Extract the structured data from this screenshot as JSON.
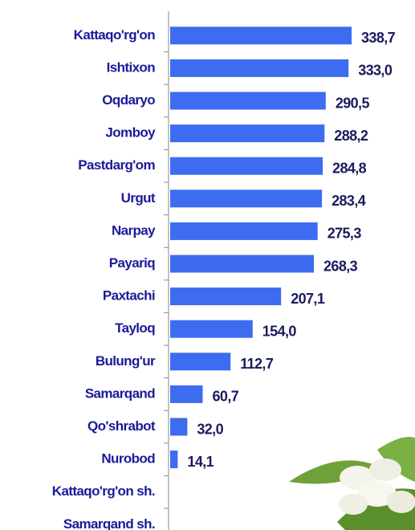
{
  "chart_data": {
    "type": "bar",
    "orientation": "horizontal",
    "categories": [
      "Kattaqo'rg'on",
      "Ishtixon",
      "Oqdaryo",
      "Jomboy",
      "Pastdarg'om",
      "Urgut",
      "Narpay",
      "Payariq",
      "Paxtachi",
      "Tayloq",
      "Bulung'ur",
      "Samarqand",
      "Qo'shrabot",
      "Nurobod",
      "Kattaqo'rg'on sh.",
      "Samarqand sh."
    ],
    "values": [
      338.7,
      333.0,
      290.5,
      288.2,
      284.8,
      283.4,
      275.3,
      268.3,
      207.1,
      154.0,
      112.7,
      60.7,
      32.0,
      14.1,
      null,
      null
    ],
    "value_labels": [
      "338,7",
      "333,0",
      "290,5",
      "288,2",
      "284,8",
      "283,4",
      "275,3",
      "268,3",
      "207,1",
      "154,0",
      "112,7",
      "60,7",
      "32,0",
      "14,1",
      null,
      null
    ],
    "color": "#3d6cf0"
  }
}
